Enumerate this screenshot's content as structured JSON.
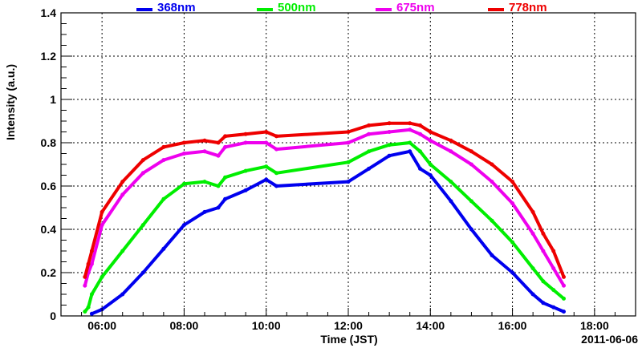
{
  "chart_data": {
    "type": "scatter",
    "title": "",
    "xlabel": "Time (JST)",
    "ylabel": "Intensity (a.u.)",
    "date_label": "2011-06-06",
    "xlim": [
      "05:00",
      "19:00"
    ],
    "ylim": [
      0,
      1.4
    ],
    "grid": true,
    "legend": "top",
    "x_ticks": [
      "06:00",
      "08:00",
      "10:00",
      "12:00",
      "14:00",
      "16:00",
      "18:00"
    ],
    "y_ticks": [
      "0",
      "0.2",
      "0.4",
      "0.6",
      "0.8",
      "1",
      "1.2",
      "1.4"
    ],
    "series": [
      {
        "name": "368nm",
        "color": "#0000ee",
        "x": [
          "05:45",
          "06:00",
          "06:30",
          "07:00",
          "07:30",
          "08:00",
          "08:30",
          "08:50",
          "09:00",
          "09:30",
          "10:00",
          "10:15",
          "12:00",
          "12:30",
          "13:00",
          "13:30",
          "13:45",
          "14:00",
          "14:30",
          "15:00",
          "15:30",
          "16:00",
          "16:30",
          "16:45",
          "17:00",
          "17:15"
        ],
        "y": [
          0.01,
          0.03,
          0.1,
          0.2,
          0.31,
          0.42,
          0.48,
          0.5,
          0.54,
          0.58,
          0.63,
          0.6,
          0.62,
          0.68,
          0.74,
          0.76,
          0.68,
          0.65,
          0.53,
          0.4,
          0.28,
          0.2,
          0.1,
          0.06,
          0.04,
          0.02
        ]
      },
      {
        "name": "500nm",
        "color": "#00ee00",
        "x": [
          "05:35",
          "05:40",
          "05:45",
          "06:00",
          "06:30",
          "07:00",
          "07:30",
          "08:00",
          "08:30",
          "08:50",
          "09:00",
          "09:30",
          "10:00",
          "10:15",
          "12:00",
          "12:30",
          "13:00",
          "13:30",
          "13:45",
          "14:00",
          "14:30",
          "15:00",
          "15:30",
          "16:00",
          "16:30",
          "16:45",
          "17:00",
          "17:15"
        ],
        "y": [
          0.02,
          0.04,
          0.1,
          0.18,
          0.3,
          0.42,
          0.54,
          0.61,
          0.62,
          0.6,
          0.64,
          0.67,
          0.69,
          0.66,
          0.71,
          0.76,
          0.79,
          0.8,
          0.76,
          0.7,
          0.62,
          0.53,
          0.44,
          0.34,
          0.22,
          0.16,
          0.12,
          0.08
        ]
      },
      {
        "name": "675nm",
        "color": "#ee00ee",
        "x": [
          "05:35",
          "05:40",
          "05:45",
          "06:00",
          "06:30",
          "07:00",
          "07:30",
          "08:00",
          "08:30",
          "08:50",
          "09:00",
          "09:30",
          "10:00",
          "10:15",
          "12:00",
          "12:30",
          "13:00",
          "13:30",
          "13:45",
          "14:00",
          "14:30",
          "15:00",
          "15:30",
          "16:00",
          "16:30",
          "16:45",
          "17:00",
          "17:15"
        ],
        "y": [
          0.14,
          0.2,
          0.24,
          0.42,
          0.56,
          0.66,
          0.72,
          0.75,
          0.76,
          0.74,
          0.78,
          0.8,
          0.8,
          0.77,
          0.8,
          0.84,
          0.85,
          0.86,
          0.84,
          0.81,
          0.76,
          0.7,
          0.62,
          0.52,
          0.38,
          0.3,
          0.22,
          0.14
        ]
      },
      {
        "name": "778nm",
        "color": "#ee0000",
        "x": [
          "05:35",
          "05:40",
          "05:45",
          "06:00",
          "06:30",
          "07:00",
          "07:30",
          "08:00",
          "08:30",
          "08:50",
          "09:00",
          "09:30",
          "10:00",
          "10:15",
          "12:00",
          "12:30",
          "13:00",
          "13:30",
          "13:45",
          "14:00",
          "14:30",
          "15:00",
          "15:30",
          "16:00",
          "16:30",
          "16:45",
          "17:00",
          "17:15"
        ],
        "y": [
          0.18,
          0.24,
          0.3,
          0.48,
          0.62,
          0.72,
          0.78,
          0.8,
          0.81,
          0.8,
          0.83,
          0.84,
          0.85,
          0.83,
          0.85,
          0.88,
          0.89,
          0.89,
          0.88,
          0.85,
          0.81,
          0.76,
          0.7,
          0.62,
          0.48,
          0.38,
          0.3,
          0.18
        ]
      }
    ]
  }
}
